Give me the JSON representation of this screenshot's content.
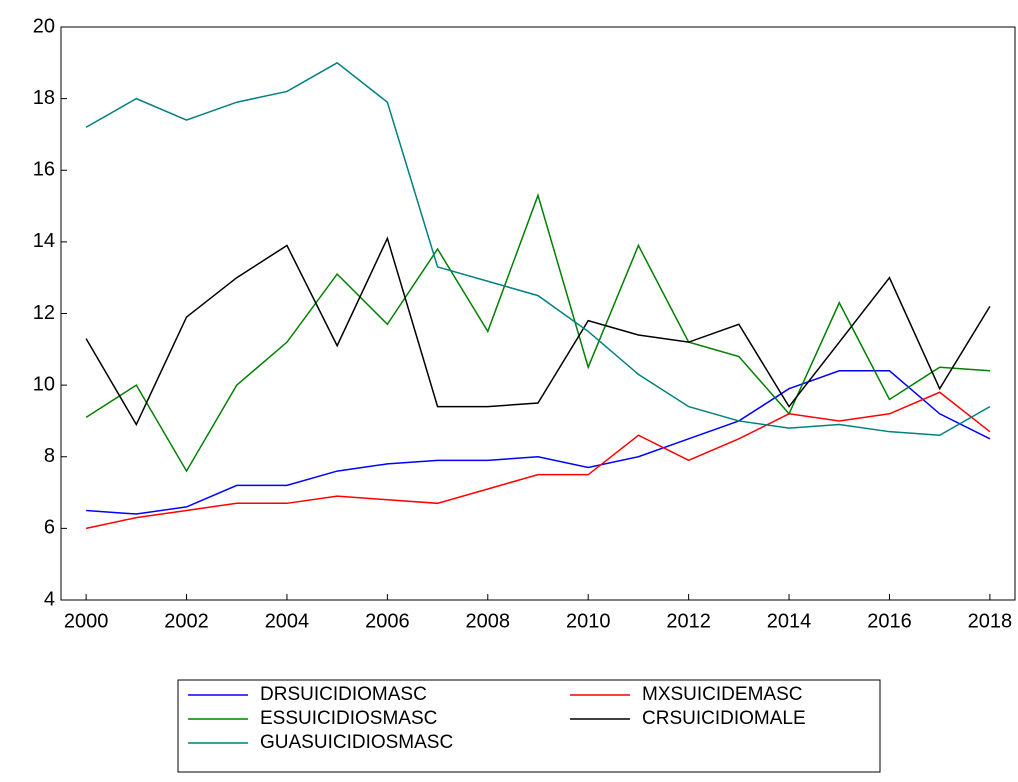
{
  "chart_data": {
    "type": "line",
    "x": [
      2000,
      2001,
      2002,
      2003,
      2004,
      2005,
      2006,
      2007,
      2008,
      2009,
      2010,
      2011,
      2012,
      2013,
      2014,
      2015,
      2016,
      2017,
      2018
    ],
    "series": [
      {
        "name": "DRSUICIDIOMASC",
        "color": "#0000ff",
        "values": [
          6.5,
          6.4,
          6.6,
          7.2,
          7.2,
          7.6,
          7.8,
          7.9,
          7.9,
          8.0,
          7.7,
          8.0,
          8.5,
          9.0,
          9.9,
          10.4,
          10.4,
          9.2,
          8.5
        ]
      },
      {
        "name": "MXSUICIDEMASC",
        "color": "#ff0000",
        "values": [
          6.0,
          6.3,
          6.5,
          6.7,
          6.7,
          6.9,
          6.8,
          6.7,
          7.1,
          7.5,
          7.5,
          8.6,
          7.9,
          8.5,
          9.2,
          9.0,
          9.2,
          9.8,
          8.7
        ]
      },
      {
        "name": "ESSUICIDIOSMASC",
        "color": "#008000",
        "values": [
          9.1,
          10.0,
          7.6,
          10.0,
          11.2,
          13.1,
          11.7,
          13.8,
          11.5,
          15.3,
          10.5,
          13.9,
          11.2,
          10.8,
          9.2,
          12.3,
          9.6,
          10.5,
          10.4
        ]
      },
      {
        "name": "CRSUICIDIOMALE",
        "color": "#000000",
        "values": [
          11.3,
          8.9,
          11.9,
          13.0,
          13.9,
          11.1,
          14.1,
          9.4,
          9.4,
          9.5,
          11.8,
          11.4,
          11.2,
          11.7,
          9.4,
          11.2,
          13.0,
          9.9,
          12.2
        ]
      },
      {
        "name": "GUASUICIDIOSMASC",
        "color": "#008080",
        "values": [
          17.2,
          18.0,
          17.4,
          17.9,
          18.2,
          19.0,
          17.9,
          13.3,
          12.9,
          12.5,
          11.5,
          10.3,
          9.4,
          9.0,
          8.8,
          8.9,
          8.7,
          8.6,
          9.4
        ]
      }
    ],
    "xlim": [
      1999.5,
      2018.5
    ],
    "xticks": [
      2000,
      2002,
      2004,
      2006,
      2008,
      2010,
      2012,
      2014,
      2016,
      2018
    ],
    "ylim": [
      4,
      20
    ],
    "yticks": [
      4,
      6,
      8,
      10,
      12,
      14,
      16,
      18,
      20
    ],
    "grid": false
  }
}
